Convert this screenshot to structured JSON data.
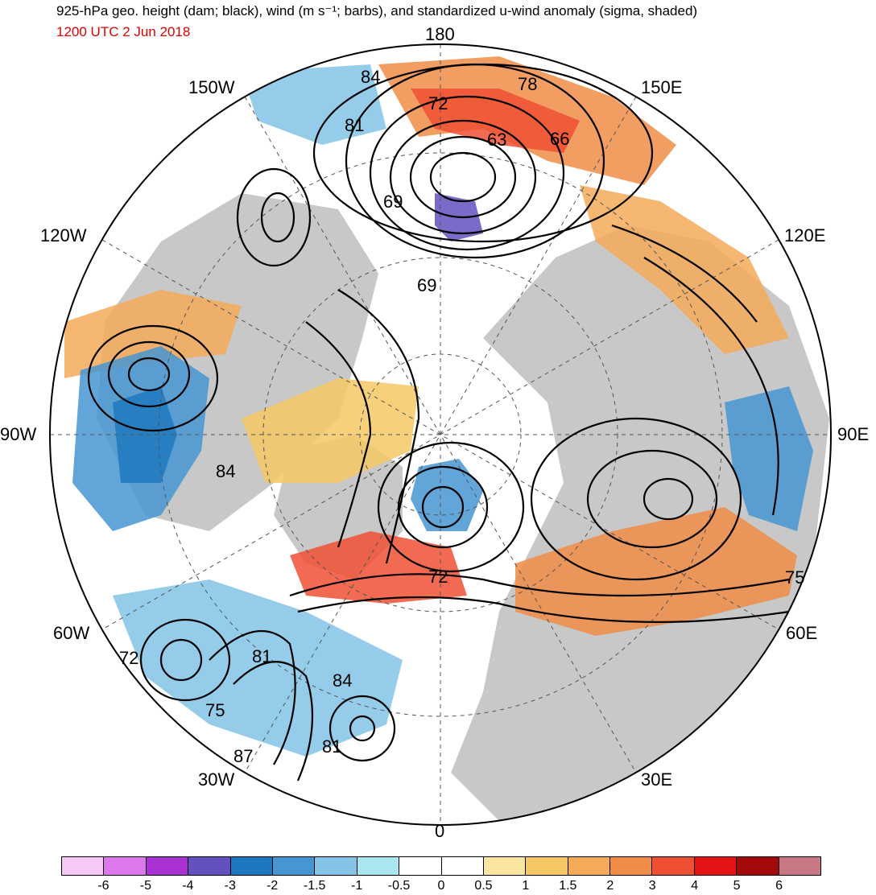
{
  "header": {
    "title": "925-hPa geo. height (dam; black), wind (m s⁻¹; barbs), and standardized u-wind anomaly (sigma, shaded)",
    "valid_time": "1200 UTC 2 Jun 2018"
  },
  "map": {
    "projection": "north-polar-stereographic",
    "land_color": "#c8c8c8",
    "contour_color": "#000000",
    "longitude_labels": {
      "top": "180",
      "bottom": "0",
      "left": "90W",
      "right": "90E",
      "upper_left": "150W",
      "upper_right": "150E",
      "mid_left_upper": "120W",
      "mid_right_upper": "120E",
      "mid_left_lower": "60W",
      "mid_right_lower": "60E",
      "lower_left": "30W",
      "lower_right": "30E"
    },
    "contour_labels": [
      "84",
      "81",
      "78",
      "72",
      "63",
      "66",
      "69",
      "69",
      "84",
      "72",
      "72",
      "81",
      "75",
      "84",
      "81",
      "87",
      "75"
    ]
  },
  "colorbar": {
    "colors": [
      "#f5c8f5",
      "#dc78eb",
      "#aa32d2",
      "#6450be",
      "#1e78be",
      "#4696d2",
      "#82c3e6",
      "#aae6f0",
      "#ffffff",
      "#ffffff",
      "#fae6a0",
      "#f5c864",
      "#f5aa5a",
      "#f08c46",
      "#f05032",
      "#e61414",
      "#a50a0a",
      "#c87882"
    ],
    "labels": [
      "-6",
      "-5",
      "-4",
      "-3",
      "-2",
      "-1.5",
      "-1",
      "-0.5",
      "0",
      "0.5",
      "1",
      "1.5",
      "2",
      "3",
      "4",
      "5",
      "6"
    ]
  }
}
